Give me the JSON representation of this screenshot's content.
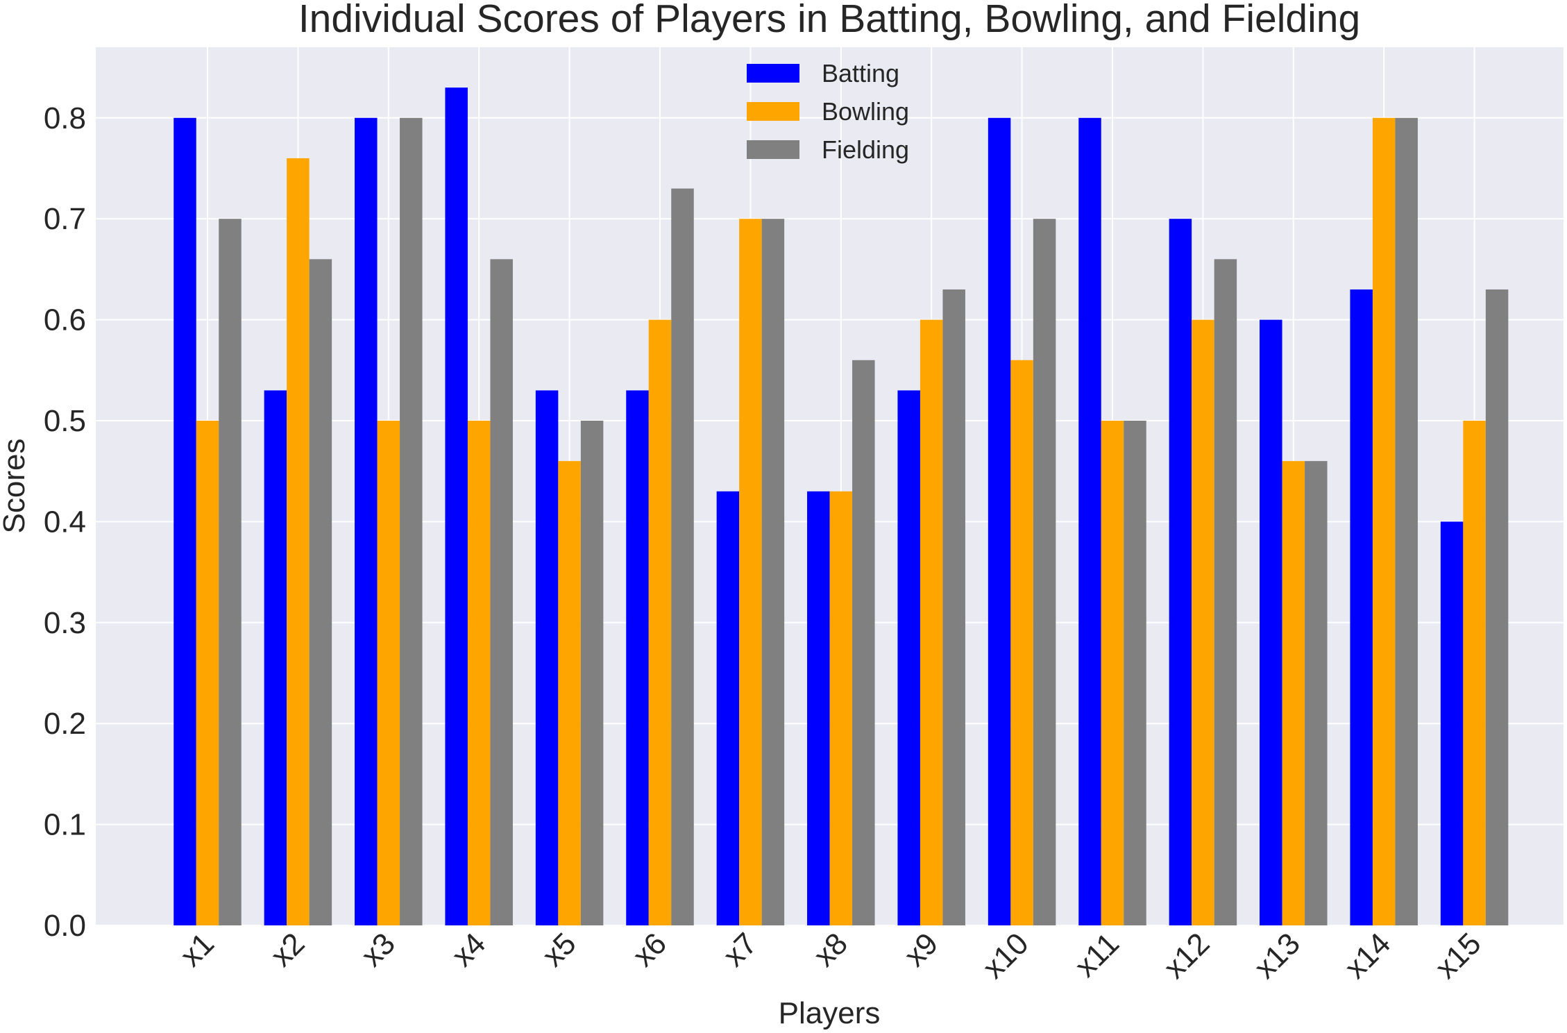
{
  "chart_data": {
    "type": "bar",
    "title": "Individual Scores of Players in Batting, Bowling, and Fielding",
    "xlabel": "Players",
    "ylabel": "Scores",
    "categories": [
      "x1",
      "x2",
      "x3",
      "x4",
      "x5",
      "x6",
      "x7",
      "x8",
      "x9",
      "x10",
      "x11",
      "x12",
      "x13",
      "x14",
      "x15"
    ],
    "series": [
      {
        "name": "Batting",
        "color": "#0000ff",
        "values": [
          0.8,
          0.53,
          0.8,
          0.83,
          0.53,
          0.53,
          0.43,
          0.43,
          0.53,
          0.8,
          0.8,
          0.7,
          0.6,
          0.63,
          0.4
        ]
      },
      {
        "name": "Bowling",
        "color": "#ffa500",
        "values": [
          0.5,
          0.76,
          0.5,
          0.5,
          0.46,
          0.6,
          0.7,
          0.43,
          0.6,
          0.56,
          0.5,
          0.6,
          0.46,
          0.8,
          0.5
        ]
      },
      {
        "name": "Fielding",
        "color": "#808080",
        "values": [
          0.7,
          0.66,
          0.8,
          0.66,
          0.5,
          0.73,
          0.7,
          0.56,
          0.63,
          0.7,
          0.5,
          0.66,
          0.46,
          0.8,
          0.63
        ]
      }
    ],
    "ylim": [
      0,
      0.87
    ],
    "yticks": [
      "0.0",
      "0.1",
      "0.2",
      "0.3",
      "0.4",
      "0.5",
      "0.6",
      "0.7",
      "0.8"
    ],
    "grid": true,
    "legend_position": "top-center",
    "background_color": "#eaeaf2",
    "grid_color": "#ffffff"
  }
}
